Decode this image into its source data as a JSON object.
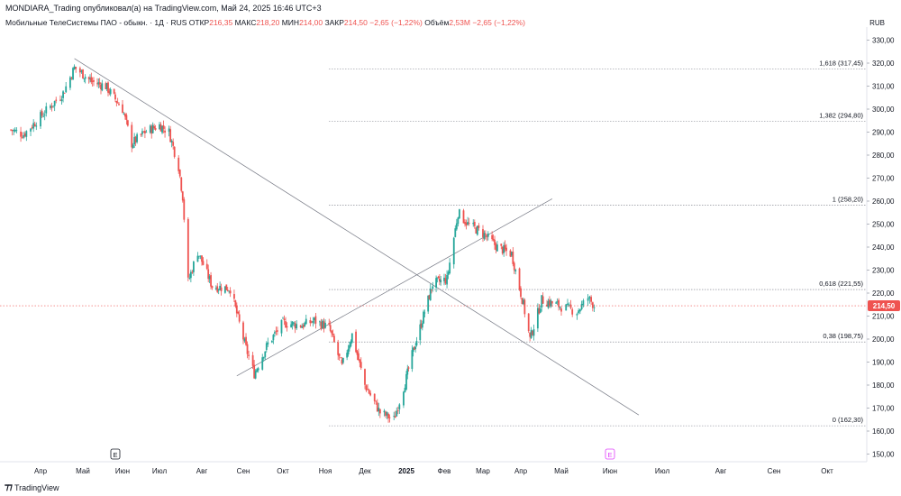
{
  "header": {
    "text": "MONDIARA_Trading опубликовал(а) на TradingView.com, Май 24, 2025 16:46 UTC+3"
  },
  "legend": {
    "title": "Мобильные ТелеСистемы ПАО - обыкн. · 1Д · RUS",
    "open_label": "ОТКР",
    "open": "216,35",
    "high_label": "МАКС",
    "high": "218,20",
    "low_label": "МИН",
    "low": "214,00",
    "close_label": "ЗАКР",
    "close": "214,50",
    "change": "−2,65 (−1,22%)",
    "volume_label": "Объём",
    "volume": "2,53M",
    "volume_change": "−2,65 (−1,22%)"
  },
  "currency": "RUB",
  "footer": {
    "brand": "TradingView"
  },
  "colors": {
    "up": "#26a69a",
    "down": "#ef5350",
    "line": "#787b86",
    "price_tag": "#ef5350",
    "earnings": "#e040fb"
  },
  "chart_data": {
    "type": "candlestick",
    "y_axis": {
      "ticks": [
        150,
        160,
        170,
        180,
        190,
        200,
        210,
        220,
        230,
        240,
        250,
        260,
        270,
        280,
        290,
        300,
        310,
        320,
        330
      ],
      "tick_labels": [
        "150,00",
        "160,00",
        "170,00",
        "180,00",
        "190,00",
        "200,00",
        "210,00",
        "220,00",
        "230,00",
        "240,00",
        "250,00",
        "260,00",
        "270,00",
        "280,00",
        "290,00",
        "300,00",
        "310,00",
        "320,00",
        "330,00"
      ],
      "ylim": [
        146,
        335
      ]
    },
    "x_axis": {
      "ticks": [
        "Апр",
        "Май",
        "Июн",
        "Июл",
        "Авг",
        "Сен",
        "Окт",
        "Ноя",
        "Дек",
        "2025",
        "Фев",
        "Мар",
        "Апр",
        "Май",
        "Июн",
        "Июл",
        "Авг",
        "Сен",
        "Окт"
      ],
      "bold": [
        "2025"
      ]
    },
    "last_price": {
      "value": 214.5,
      "label": "214,50"
    },
    "fib_levels": [
      {
        "ratio": "1,618",
        "value": 317.45,
        "label": "1,618 (317,45)"
      },
      {
        "ratio": "1,382",
        "value": 294.8,
        "label": "1,382 (294,80)"
      },
      {
        "ratio": "1",
        "value": 258.2,
        "label": "1 (258,20)"
      },
      {
        "ratio": "0,618",
        "value": 221.55,
        "label": "0,618 (221,55)"
      },
      {
        "ratio": "0,38",
        "value": 198.75,
        "label": "0,38 (198,75)"
      },
      {
        "ratio": "0",
        "value": 162.3,
        "label": "0 (162,30)"
      }
    ],
    "trendlines": [
      {
        "name": "descending",
        "from": [
          "2024-04-25",
          322
        ],
        "to": [
          "2025-06-18",
          167
        ]
      },
      {
        "name": "ascending",
        "from": [
          "2024-08-28",
          184
        ],
        "to": [
          "2025-04-25",
          261
        ]
      }
    ],
    "events": [
      {
        "type": "earnings",
        "label": "E",
        "date": "2024-05-28"
      },
      {
        "type": "earnings",
        "label": "E",
        "date": "2025-06-02"
      }
    ],
    "price_path": [
      [
        "2024-03-11",
        291
      ],
      [
        "2024-03-20",
        289
      ],
      [
        "2024-04-03",
        298
      ],
      [
        "2024-04-17",
        307
      ],
      [
        "2024-04-25",
        318
      ],
      [
        "2024-05-08",
        312
      ],
      [
        "2024-05-20",
        310
      ],
      [
        "2024-06-03",
        300
      ],
      [
        "2024-06-10",
        285
      ],
      [
        "2024-06-20",
        290
      ],
      [
        "2024-07-01",
        293
      ],
      [
        "2024-07-08",
        290
      ],
      [
        "2024-07-15",
        275
      ],
      [
        "2024-07-18",
        262
      ],
      [
        "2024-07-22",
        225
      ],
      [
        "2024-07-29",
        238
      ],
      [
        "2024-08-09",
        223
      ],
      [
        "2024-08-23",
        222
      ],
      [
        "2024-09-04",
        196
      ],
      [
        "2024-09-10",
        185
      ],
      [
        "2024-09-20",
        198
      ],
      [
        "2024-10-01",
        207
      ],
      [
        "2024-10-15",
        206
      ],
      [
        "2024-10-24",
        208
      ],
      [
        "2024-11-04",
        205
      ],
      [
        "2024-11-14",
        188
      ],
      [
        "2024-11-22",
        202
      ],
      [
        "2024-12-02",
        180
      ],
      [
        "2024-12-13",
        168
      ],
      [
        "2024-12-23",
        165
      ],
      [
        "2025-01-06",
        193
      ],
      [
        "2025-01-13",
        205
      ],
      [
        "2025-01-24",
        224
      ],
      [
        "2025-02-05",
        226
      ],
      [
        "2025-02-13",
        255
      ],
      [
        "2025-02-20",
        250
      ],
      [
        "2025-03-03",
        246
      ],
      [
        "2025-03-14",
        240
      ],
      [
        "2025-03-25",
        237
      ],
      [
        "2025-04-03",
        215
      ],
      [
        "2025-04-08",
        200
      ],
      [
        "2025-04-17",
        217
      ],
      [
        "2025-04-28",
        215
      ],
      [
        "2025-05-12",
        212
      ],
      [
        "2025-05-19",
        218
      ],
      [
        "2025-05-23",
        214.5
      ]
    ]
  }
}
